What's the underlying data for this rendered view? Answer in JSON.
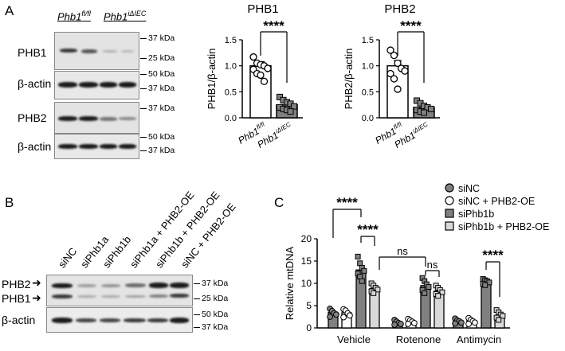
{
  "panels": {
    "a": "A",
    "b": "B",
    "c": "C"
  },
  "panel_a_blot": {
    "groups": [
      {
        "base": "Phb1",
        "sup": "fl/fl"
      },
      {
        "base": "Phb1",
        "sup": "iΔIEC"
      }
    ],
    "rows": [
      {
        "label": "PHB1",
        "markers": [
          "37 kDa",
          "25 kDa"
        ]
      },
      {
        "label": "β-actin",
        "markers": [
          "50 kDa",
          "37 kDa"
        ]
      },
      {
        "label": "PHB2",
        "markers": [
          "37 kDa"
        ]
      },
      {
        "label": "β-actin",
        "markers": [
          "50 kDa",
          "37 kDa"
        ]
      }
    ]
  },
  "panel_b_blot": {
    "lanes": [
      "siNC",
      "siPhb1a",
      "siPhb1b",
      "siPhb1a + PHB2-OE",
      "siPhb1b + PHB2-OE",
      "siNC + PHB2-OE"
    ],
    "rows": [
      {
        "labels": [
          "PHB2",
          "PHB1"
        ],
        "markers": [
          "37 kDa",
          "25 kDa"
        ]
      },
      {
        "labels": [
          "β-actin"
        ],
        "markers": [
          "50 kDa",
          "37 kDa"
        ]
      }
    ]
  },
  "chart_data": [
    {
      "type": "bar",
      "title": "PHB1",
      "ylabel": "PHB1/β-actin",
      "ylim": [
        0,
        1.5
      ],
      "yticks": [
        "0.0",
        "0.5",
        "1.0",
        "1.5"
      ],
      "categories": [
        {
          "base": "Phb1",
          "sup": "fl/fl"
        },
        {
          "base": "Phb1",
          "sup": "iΔIEC"
        }
      ],
      "values": [
        1.0,
        0.25
      ],
      "errors": [
        0.08,
        0.04
      ],
      "points": [
        [
          1.17,
          1.05,
          1.02,
          1.0,
          0.95,
          0.93,
          0.85,
          0.82,
          0.7
        ],
        [
          0.4,
          0.34,
          0.3,
          0.27,
          0.22,
          0.2,
          0.17,
          0.15,
          0.12
        ]
      ],
      "colors": [
        "#ffffff",
        "#808080"
      ],
      "significance": "****"
    },
    {
      "type": "bar",
      "title": "PHB2",
      "ylabel": "PHB2/β-actin",
      "ylim": [
        0,
        1.5
      ],
      "yticks": [
        "0.0",
        "0.5",
        "1.0",
        "1.5"
      ],
      "categories": [
        {
          "base": "Phb1",
          "sup": "fl/fl"
        },
        {
          "base": "Phb1",
          "sup": "iΔIEC"
        }
      ],
      "values": [
        1.0,
        0.2
      ],
      "errors": [
        0.1,
        0.03
      ],
      "points": [
        [
          1.3,
          1.2,
          1.05,
          0.95,
          0.9,
          0.85,
          0.75,
          0.55
        ],
        [
          0.33,
          0.28,
          0.23,
          0.2,
          0.17,
          0.15,
          0.12,
          0.1
        ]
      ],
      "colors": [
        "#ffffff",
        "#808080"
      ],
      "significance": "****"
    },
    {
      "type": "bar",
      "ylabel": "Relative mtDNA",
      "ylim": [
        0,
        20
      ],
      "yticks": [
        "0",
        "5",
        "10",
        "15",
        "20"
      ],
      "categories": [
        "Vehicle",
        "Rotenone",
        "Antimycin"
      ],
      "legend": {
        "position": "top-right"
      },
      "series": [
        {
          "name": "siNC",
          "color": "#808080",
          "values": [
            3.5,
            1.3,
            1.6
          ],
          "points": [
            [
              4.3,
              3.8,
              3.3,
              3.0,
              2.5
            ],
            [
              1.8,
              1.4,
              1.1,
              0.9,
              0.7
            ],
            [
              2.1,
              1.7,
              1.5,
              1.2,
              1.0
            ]
          ]
        },
        {
          "name": "siNC + PHB2-OE",
          "color": "#ffffff",
          "values": [
            3.4,
            1.5,
            1.6
          ],
          "points": [
            [
              4.2,
              3.9,
              3.3,
              2.8,
              2.4
            ],
            [
              2.0,
              1.7,
              1.4,
              1.1,
              0.9
            ],
            [
              2.2,
              1.8,
              1.5,
              1.2,
              0.9
            ]
          ]
        },
        {
          "name": "siPhb1b",
          "color": "#808080",
          "values": [
            13.0,
            9.5,
            10.5
          ],
          "points": [
            [
              16.0,
              14.5,
              13.5,
              12.8,
              12.2,
              11.5,
              10.5
            ],
            [
              11.2,
              10.5,
              9.8,
              9.2,
              8.5,
              7.8
            ],
            [
              11.0,
              10.7,
              10.5,
              10.2,
              9.9,
              9.6
            ]
          ]
        },
        {
          "name": "siPhb1b + PHB2-OE",
          "color": "#d9d9d9",
          "values": [
            8.8,
            8.3,
            2.8
          ],
          "points": [
            [
              10.0,
              9.5,
              9.0,
              8.6,
              8.2,
              7.8
            ],
            [
              9.5,
              9.0,
              8.5,
              8.0,
              7.6,
              7.2
            ],
            [
              4.0,
              3.5,
              3.0,
              2.7,
              2.3,
              1.8
            ]
          ]
        }
      ],
      "annotations": [
        {
          "text": "****",
          "kind": "vehicle_sinc_vs_siphb1b"
        },
        {
          "text": "****",
          "kind": "vehicle_siphb1b_vs_oe"
        },
        {
          "text": "ns",
          "kind": "vehicle_vs_rotenone"
        },
        {
          "text": "ns",
          "kind": "rotenone_siphb1b_vs_oe"
        },
        {
          "text": "****",
          "kind": "antimycin_siphb1b_vs_oe"
        }
      ]
    }
  ]
}
